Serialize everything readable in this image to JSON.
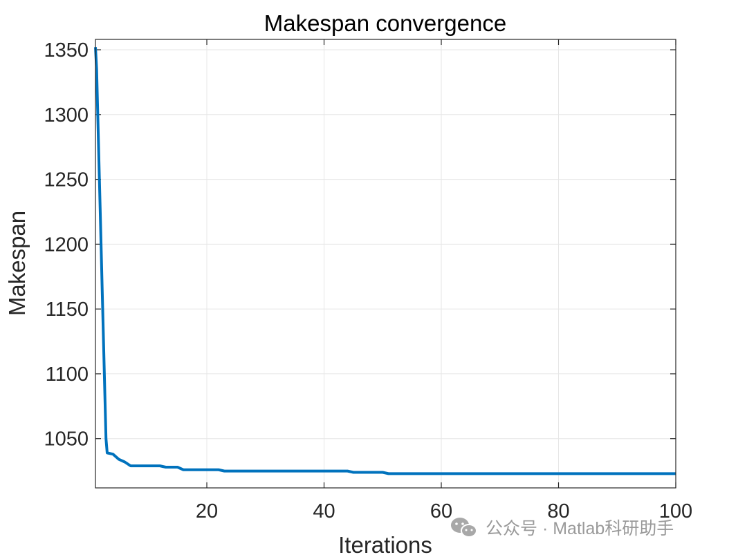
{
  "chart_data": {
    "type": "line",
    "title": "Makespan convergence",
    "xlabel": "Iterations",
    "ylabel": "Makespan",
    "xlim": [
      1,
      100
    ],
    "ylim": [
      1012,
      1358
    ],
    "xticks": [
      20,
      40,
      60,
      80,
      100
    ],
    "yticks": [
      1050,
      1100,
      1150,
      1200,
      1250,
      1300,
      1350
    ],
    "grid": true,
    "series": [
      {
        "color": "#0072BD",
        "x": [
          1,
          1.2,
          1.4,
          1.6,
          1.8,
          2,
          2.2,
          2.4,
          2.6,
          2.8,
          3,
          4,
          5,
          6,
          7,
          8,
          9,
          10,
          11,
          12,
          13,
          14,
          15,
          16,
          17,
          18,
          19,
          20,
          21,
          22,
          23,
          24,
          25,
          30,
          35,
          40,
          44,
          45,
          46,
          47,
          48,
          49,
          50,
          51,
          52,
          55,
          60,
          65,
          70,
          75,
          80,
          85,
          90,
          95,
          100
        ],
        "y": [
          1352,
          1335,
          1299,
          1263,
          1228,
          1192,
          1156,
          1121,
          1085,
          1050,
          1039,
          1038,
          1034,
          1032,
          1029,
          1029,
          1029,
          1029,
          1029,
          1029,
          1028,
          1028,
          1028,
          1026,
          1026,
          1026,
          1026,
          1026,
          1026,
          1026,
          1025,
          1025,
          1025,
          1025,
          1025,
          1025,
          1025,
          1024,
          1024,
          1024,
          1024,
          1024,
          1024,
          1023,
          1023,
          1023,
          1023,
          1023,
          1023,
          1023,
          1023,
          1023,
          1023,
          1023,
          1023
        ]
      }
    ]
  },
  "watermark": {
    "icon": "wechat-icon",
    "text": "公众号 · Matlab科研助手"
  }
}
